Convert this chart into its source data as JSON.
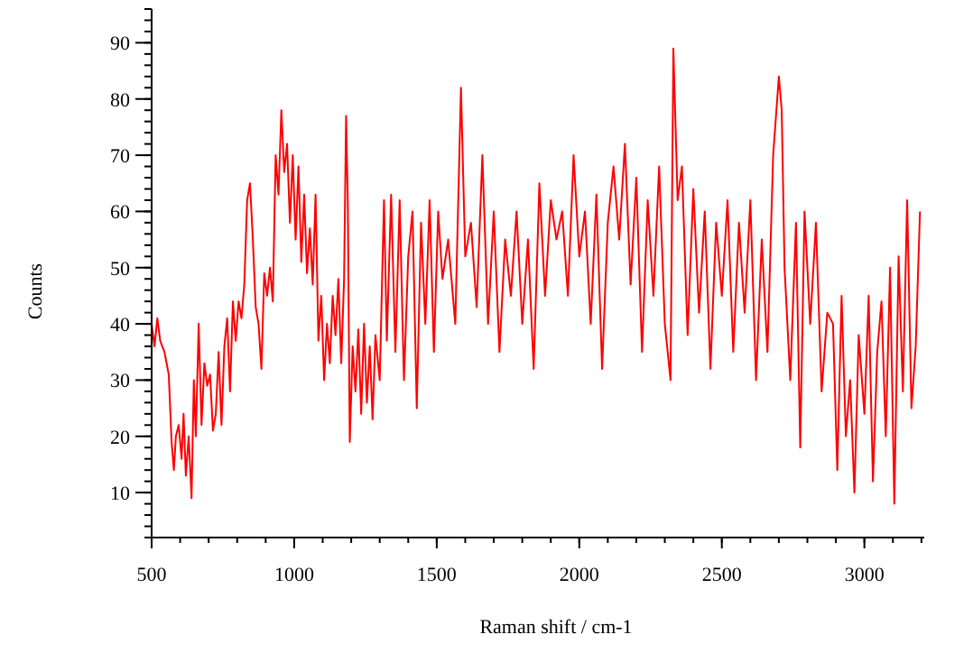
{
  "chart_data": {
    "type": "line",
    "xlabel": "Raman shift / cm-1",
    "ylabel": "Counts",
    "xlim": [
      500,
      3210
    ],
    "ylim": [
      2,
      96
    ],
    "xticks": [
      500,
      1000,
      1500,
      2000,
      2500,
      3000
    ],
    "yticks": [
      10,
      20,
      30,
      40,
      50,
      60,
      70,
      80,
      90
    ],
    "grid": false,
    "marker": "none",
    "line_style": "solid",
    "series": [
      {
        "color": "#ff0000",
        "x": [
          500,
          510,
          520,
          530,
          545,
          560,
          570,
          578,
          585,
          595,
          605,
          612,
          620,
          630,
          640,
          648,
          655,
          665,
          675,
          685,
          695,
          705,
          715,
          725,
          735,
          745,
          755,
          765,
          775,
          785,
          795,
          805,
          815,
          825,
          835,
          845,
          855,
          865,
          875,
          885,
          895,
          905,
          915,
          925,
          935,
          945,
          955,
          965,
          975,
          985,
          995,
          1005,
          1015,
          1025,
          1035,
          1045,
          1055,
          1065,
          1075,
          1085,
          1095,
          1105,
          1115,
          1125,
          1135,
          1145,
          1155,
          1165,
          1175,
          1182,
          1188,
          1195,
          1205,
          1215,
          1225,
          1235,
          1245,
          1255,
          1265,
          1275,
          1285,
          1300,
          1315,
          1325,
          1340,
          1355,
          1370,
          1385,
          1400,
          1415,
          1430,
          1445,
          1460,
          1475,
          1490,
          1505,
          1520,
          1540,
          1565,
          1585,
          1600,
          1620,
          1640,
          1660,
          1680,
          1700,
          1720,
          1740,
          1760,
          1780,
          1800,
          1820,
          1840,
          1860,
          1880,
          1900,
          1920,
          1940,
          1960,
          1980,
          2000,
          2020,
          2040,
          2060,
          2080,
          2100,
          2120,
          2140,
          2160,
          2180,
          2200,
          2220,
          2240,
          2260,
          2280,
          2300,
          2320,
          2330,
          2345,
          2360,
          2380,
          2400,
          2420,
          2440,
          2460,
          2480,
          2500,
          2520,
          2540,
          2560,
          2580,
          2600,
          2620,
          2640,
          2660,
          2680,
          2700,
          2710,
          2720,
          2740,
          2760,
          2775,
          2790,
          2810,
          2830,
          2850,
          2870,
          2890,
          2905,
          2920,
          2935,
          2950,
          2965,
          2980,
          3000,
          3015,
          3030,
          3045,
          3060,
          3075,
          3090,
          3105,
          3120,
          3135,
          3150,
          3165,
          3180,
          3195
        ],
        "values": [
          40,
          36,
          41,
          37,
          35,
          31,
          19,
          14,
          20,
          22,
          16,
          24,
          13,
          20,
          9,
          30,
          20,
          40,
          22,
          33,
          29,
          31,
          21,
          24,
          35,
          22,
          36,
          41,
          28,
          44,
          37,
          44,
          41,
          47,
          62,
          65,
          55,
          43,
          40,
          32,
          49,
          45,
          50,
          44,
          70,
          63,
          78,
          67,
          72,
          58,
          70,
          55,
          68,
          51,
          63,
          49,
          57,
          47,
          63,
          37,
          45,
          30,
          40,
          33,
          45,
          38,
          48,
          33,
          48,
          77,
          62,
          19,
          36,
          28,
          39,
          24,
          40,
          26,
          36,
          23,
          38,
          30,
          62,
          37,
          63,
          35,
          62,
          30,
          52,
          60,
          25,
          58,
          40,
          62,
          35,
          60,
          48,
          55,
          40,
          82,
          52,
          58,
          43,
          70,
          40,
          60,
          35,
          55,
          45,
          60,
          40,
          55,
          32,
          65,
          45,
          62,
          55,
          60,
          45,
          70,
          52,
          60,
          40,
          63,
          32,
          58,
          68,
          55,
          72,
          47,
          66,
          35,
          62,
          45,
          68,
          40,
          30,
          89,
          62,
          68,
          38,
          64,
          42,
          60,
          32,
          58,
          45,
          62,
          35,
          58,
          42,
          62,
          30,
          55,
          35,
          70,
          84,
          78,
          50,
          30,
          58,
          18,
          60,
          40,
          58,
          28,
          42,
          40,
          14,
          45,
          20,
          30,
          10,
          38,
          24,
          45,
          12,
          35,
          44,
          20,
          50,
          8,
          52,
          28,
          62,
          25,
          36,
          60
        ]
      }
    ]
  }
}
